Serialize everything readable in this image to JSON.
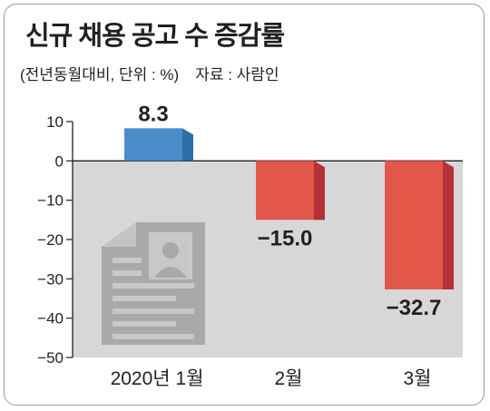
{
  "header": {
    "title": "신규 채용 공고 수 증감률",
    "unit_note": "(전년동월대비, 단위 : %)",
    "source": "자료 : 사람인"
  },
  "colors": {
    "positive_bar": "#4a8cc9",
    "positive_side": "#2d6ea8",
    "negative_bar": "#e1584a",
    "negative_side": "#b53038",
    "plot_background": "#d7d7d7",
    "icon": "#a9a9a9"
  },
  "decoration": {
    "icon": "resume-document-icon"
  },
  "chart_data": {
    "type": "bar",
    "categories": [
      "2020년 1월",
      "2월",
      "3월"
    ],
    "values": [
      8.3,
      -15.0,
      -32.7
    ],
    "value_labels": [
      "8.3",
      "−15.0",
      "−32.7"
    ],
    "title": "신규 채용 공고 수 증감률",
    "ylabel": "",
    "xlabel": "",
    "ylim": [
      -50,
      10
    ],
    "yticks": [
      10,
      0,
      -10,
      -20,
      -30,
      -40,
      -50
    ],
    "ytick_labels": [
      "10",
      "0",
      "−10",
      "−20",
      "−30",
      "−40",
      "−50"
    ],
    "grid": false,
    "legend": "none"
  }
}
